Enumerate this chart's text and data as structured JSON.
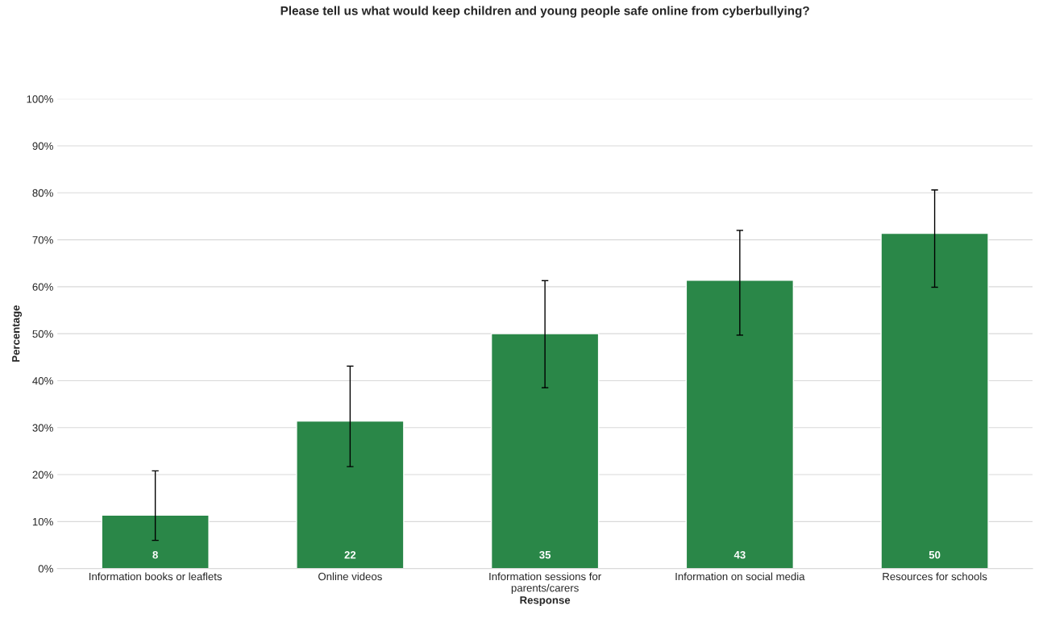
{
  "chart_data": {
    "type": "bar",
    "title": "Please tell us what would keep children and young people safe online from cyberbullying?",
    "xlabel": "Response",
    "ylabel": "Percentage",
    "categories": [
      "Information books or leaflets",
      "Online videos",
      "Information sessions for\nparents/carers",
      "Information on social media",
      "Resources for schools"
    ],
    "values": [
      11.4,
      31.4,
      50,
      61.4,
      71.4
    ],
    "color": "#2a8748",
    "errors": [
      [
        6.0,
        20.8
      ],
      [
        21.7,
        43.1
      ],
      [
        38.5,
        61.3
      ],
      [
        49.7,
        72.0
      ],
      [
        59.9,
        80.6
      ]
    ],
    "annotations": [
      {
        "text": "8",
        "x": "Information books or leaflets",
        "y": 0
      },
      {
        "text": "22",
        "x": "Online videos",
        "y": 0
      },
      {
        "text": "35",
        "x": "Information sessions for\nparents/carers",
        "y": 0
      },
      {
        "text": "43",
        "x": "Information on social media",
        "y": 0
      },
      {
        "text": "50",
        "x": "Resources for schools",
        "y": 0
      }
    ],
    "ylim": [
      0,
      100
    ],
    "yticks": [
      {
        "value": 0,
        "label": "0%"
      },
      {
        "value": 10,
        "label": "10%"
      },
      {
        "value": 20,
        "label": "20%"
      },
      {
        "value": 30,
        "label": "30%"
      },
      {
        "value": 40,
        "label": "40%"
      },
      {
        "value": 50,
        "label": "50%"
      },
      {
        "value": 60,
        "label": "60%"
      },
      {
        "value": 70,
        "label": "70%"
      },
      {
        "value": 80,
        "label": "80%"
      },
      {
        "value": 90,
        "label": "90%"
      },
      {
        "value": 100,
        "label": "100%"
      }
    ],
    "grid": "y",
    "legend": false
  }
}
